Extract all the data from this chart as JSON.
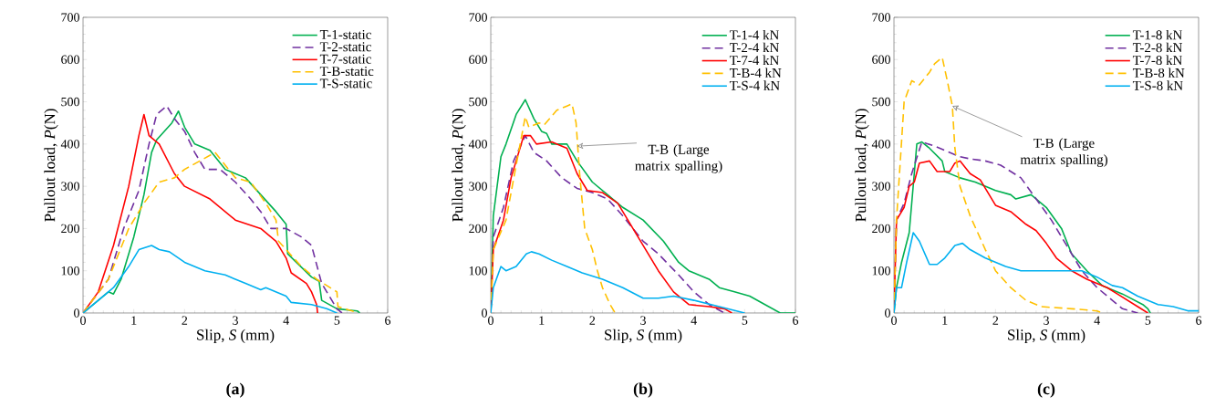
{
  "chart_data": [
    {
      "type": "line",
      "subtitle": "(a)",
      "xlabel": "Slip, *S* (mm)",
      "ylabel": "Pullout load, *P*(N)",
      "xlim": [
        0,
        6
      ],
      "ylim": [
        0,
        700
      ],
      "xticks": [
        0,
        1,
        2,
        3,
        4,
        5,
        6
      ],
      "yticks": [
        0,
        100,
        200,
        300,
        400,
        500,
        600,
        700
      ],
      "legend": "top right",
      "grid": false,
      "marker": "none",
      "series": [
        {
          "name": "T-1-static",
          "color": "#00b050",
          "line_style": "solid",
          "x": [
            0,
            0.5,
            0.6,
            0.75,
            1,
            1.2,
            1.35,
            1.45,
            1.6,
            1.75,
            1.88,
            2,
            2.2,
            2.5,
            2.8,
            3.2,
            3.5,
            3.8,
            4,
            4.03,
            4.2,
            4.5,
            4.65,
            4.7,
            5,
            5.4,
            5.45
          ],
          "values": [
            0,
            50,
            45,
            80,
            180,
            280,
            380,
            410,
            430,
            450,
            478,
            440,
            400,
            385,
            340,
            320,
            280,
            240,
            210,
            140,
            120,
            85,
            75,
            30,
            10,
            5,
            0
          ]
        },
        {
          "name": "T-2-static",
          "color": "#7030a0",
          "line_style": "dashed",
          "x": [
            0,
            0.5,
            0.8,
            1.1,
            1.3,
            1.45,
            1.65,
            1.8,
            2,
            2.2,
            2.4,
            2.7,
            3,
            3.3,
            3.5,
            3.7,
            4,
            4.3,
            4.5,
            4.7,
            5,
            5.1
          ],
          "values": [
            0,
            80,
            200,
            290,
            400,
            470,
            490,
            460,
            430,
            380,
            340,
            340,
            310,
            270,
            240,
            200,
            200,
            180,
            160,
            70,
            10,
            0
          ]
        },
        {
          "name": "T-7-static",
          "color": "#ff0000",
          "line_style": "solid",
          "x": [
            0,
            0.3,
            0.6,
            0.9,
            1.1,
            1.2,
            1.3,
            1.5,
            1.8,
            2,
            2.5,
            3,
            3.5,
            3.8,
            4,
            4.1,
            4.4,
            4.5,
            4.6,
            4.62
          ],
          "values": [
            0,
            50,
            160,
            300,
            420,
            470,
            420,
            400,
            330,
            300,
            270,
            220,
            200,
            170,
            130,
            95,
            70,
            50,
            20,
            0
          ]
        },
        {
          "name": "T-B-static",
          "color": "#ffc000",
          "line_style": "dashed",
          "x": [
            0,
            0.5,
            0.9,
            1.2,
            1.5,
            1.8,
            2,
            2.3,
            2.6,
            2.8,
            3,
            3.3,
            3.6,
            3.8,
            3.85,
            4,
            4.3,
            4.6,
            5,
            5.02,
            5.3,
            5.4
          ],
          "values": [
            0,
            80,
            200,
            260,
            310,
            320,
            340,
            360,
            380,
            350,
            320,
            310,
            260,
            220,
            170,
            150,
            110,
            80,
            50,
            15,
            5,
            0
          ]
        },
        {
          "name": "T-S-static",
          "color": "#00b0f0",
          "line_style": "solid",
          "x": [
            0,
            0.3,
            0.6,
            0.9,
            1.1,
            1.35,
            1.5,
            1.7,
            2,
            2.4,
            2.8,
            3.2,
            3.5,
            3.6,
            4,
            4.1,
            4.5,
            4.8,
            5
          ],
          "values": [
            0,
            30,
            60,
            110,
            150,
            160,
            150,
            145,
            120,
            100,
            90,
            70,
            55,
            60,
            40,
            25,
            20,
            10,
            0
          ]
        }
      ]
    },
    {
      "type": "line",
      "subtitle": "(b)",
      "xlabel": "Slip, *S* (mm)",
      "ylabel": "Pullout load, *P*(N)",
      "xlim": [
        0,
        6
      ],
      "ylim": [
        0,
        700
      ],
      "xticks": [
        0,
        1,
        2,
        3,
        4,
        5,
        6
      ],
      "yticks": [
        0,
        100,
        200,
        300,
        400,
        500,
        600,
        700
      ],
      "legend": "top right",
      "grid": false,
      "marker": "none",
      "annotations": [
        {
          "text": "T-B (Large matrix spalling)",
          "x": 1.7,
          "y": 395
        }
      ],
      "series": [
        {
          "name": "T-1-4 kN",
          "color": "#00b050",
          "line_style": "solid",
          "x": [
            0,
            0.05,
            0.2,
            0.3,
            0.5,
            0.68,
            0.85,
            1,
            1.1,
            1.2,
            1.5,
            1.7,
            2,
            2.3,
            2.6,
            3,
            3.4,
            3.7,
            3.9,
            4.3,
            4.5,
            4.8,
            5.1,
            5.4,
            5.7,
            6
          ],
          "values": [
            0,
            230,
            370,
            400,
            470,
            505,
            460,
            430,
            425,
            400,
            400,
            360,
            310,
            280,
            250,
            220,
            170,
            120,
            100,
            80,
            60,
            50,
            40,
            20,
            0,
            0
          ]
        },
        {
          "name": "T-2-4 kN",
          "color": "#7030a0",
          "line_style": "dashed",
          "x": [
            0,
            0.05,
            0.25,
            0.45,
            0.68,
            0.85,
            1.1,
            1.4,
            1.7,
            2,
            2.3,
            2.6,
            3,
            3.3,
            3.7,
            4,
            4.3,
            4.6
          ],
          "values": [
            0,
            180,
            250,
            360,
            420,
            380,
            360,
            320,
            295,
            285,
            270,
            230,
            170,
            140,
            90,
            50,
            20,
            0
          ]
        },
        {
          "name": "T-7-4 kN",
          "color": "#ff0000",
          "line_style": "solid",
          "x": [
            0,
            0.05,
            0.25,
            0.4,
            0.65,
            0.78,
            0.9,
            1.2,
            1.5,
            1.7,
            1.9,
            2.2,
            2.5,
            2.8,
            3,
            3.3,
            3.6,
            3.9,
            4.3,
            4.6,
            4.75
          ],
          "values": [
            0,
            150,
            220,
            320,
            420,
            420,
            400,
            405,
            390,
            330,
            290,
            285,
            260,
            200,
            160,
            100,
            50,
            20,
            15,
            10,
            0
          ]
        },
        {
          "name": "T-B-4 kN",
          "color": "#ffc000",
          "line_style": "dashed",
          "x": [
            0,
            0.05,
            0.3,
            0.5,
            0.68,
            0.75,
            0.95,
            1.05,
            1.3,
            1.5,
            1.6,
            1.68,
            1.75,
            1.85,
            2,
            2.1,
            2.2,
            2.35,
            2.45
          ],
          "values": [
            0,
            150,
            220,
            350,
            465,
            440,
            450,
            445,
            480,
            490,
            495,
            450,
            330,
            200,
            150,
            100,
            60,
            20,
            0
          ]
        },
        {
          "name": "T-S-4 kN",
          "color": "#00b0f0",
          "line_style": "solid",
          "x": [
            0,
            0.05,
            0.2,
            0.3,
            0.5,
            0.7,
            0.8,
            0.95,
            1.2,
            1.5,
            1.8,
            2.2,
            2.6,
            3,
            3.3,
            3.6,
            4,
            4.5,
            5
          ],
          "values": [
            0,
            60,
            110,
            100,
            110,
            140,
            145,
            140,
            125,
            110,
            95,
            80,
            60,
            35,
            35,
            40,
            30,
            15,
            0
          ]
        }
      ]
    },
    {
      "type": "line",
      "subtitle": "(c)",
      "xlabel": "Slip, *S* (mm)",
      "ylabel": "Pullout load, *P*(N)",
      "xlim": [
        0,
        6
      ],
      "ylim": [
        0,
        700
      ],
      "xticks": [
        0,
        1,
        2,
        3,
        4,
        5,
        6
      ],
      "yticks": [
        0,
        100,
        200,
        300,
        400,
        500,
        600,
        700
      ],
      "legend": "top right",
      "grid": false,
      "marker": "none",
      "annotations": [
        {
          "text": "T-B (Large matrix spalling)",
          "x": 1.15,
          "y": 490
        }
      ],
      "series": [
        {
          "name": "T-1-8 kN",
          "color": "#00b050",
          "line_style": "solid",
          "x": [
            0,
            0.05,
            0.15,
            0.3,
            0.45,
            0.55,
            0.7,
            0.95,
            1,
            1.3,
            1.6,
            2,
            2.3,
            2.4,
            2.7,
            3,
            3.3,
            3.5,
            3.8,
            4.1,
            4.5,
            4.9,
            5,
            5.05
          ],
          "values": [
            0,
            60,
            120,
            190,
            400,
            405,
            390,
            360,
            335,
            320,
            310,
            290,
            280,
            270,
            280,
            250,
            200,
            140,
            100,
            65,
            45,
            20,
            10,
            0
          ]
        },
        {
          "name": "T-2-8 kN",
          "color": "#7030a0",
          "line_style": "dashed",
          "x": [
            0,
            0.05,
            0.2,
            0.35,
            0.55,
            0.8,
            1,
            1.3,
            1.5,
            1.8,
            2.1,
            2.5,
            2.8,
            3.1,
            3.4,
            3.7,
            4,
            4.3,
            4.5,
            4.8
          ],
          "values": [
            0,
            220,
            260,
            330,
            405,
            395,
            385,
            370,
            365,
            360,
            350,
            320,
            270,
            220,
            160,
            100,
            60,
            30,
            10,
            0
          ]
        },
        {
          "name": "T-7-8 kN",
          "color": "#ff0000",
          "line_style": "solid",
          "x": [
            0,
            0.05,
            0.2,
            0.3,
            0.4,
            0.5,
            0.7,
            0.85,
            1.1,
            1.2,
            1.3,
            1.5,
            1.7,
            2,
            2.3,
            2.6,
            2.8,
            3,
            3.2,
            3.5,
            3.8,
            4.2,
            4.4,
            4.8,
            5
          ],
          "values": [
            0,
            220,
            250,
            300,
            310,
            355,
            360,
            335,
            335,
            355,
            360,
            330,
            315,
            255,
            240,
            210,
            195,
            165,
            130,
            100,
            80,
            60,
            45,
            15,
            0
          ]
        },
        {
          "name": "T-B-8 kN",
          "color": "#ffc000",
          "line_style": "dashed",
          "x": [
            0,
            0.05,
            0.2,
            0.35,
            0.5,
            0.7,
            0.8,
            0.95,
            1.05,
            1.15,
            1.2,
            1.3,
            1.5,
            1.8,
            2,
            2.3,
            2.6,
            2.9,
            3.5,
            4,
            4.1
          ],
          "values": [
            0,
            220,
            500,
            550,
            540,
            570,
            590,
            605,
            550,
            490,
            390,
            300,
            230,
            150,
            100,
            60,
            30,
            15,
            10,
            5,
            0
          ]
        },
        {
          "name": "T-S-8 kN",
          "color": "#00b0f0",
          "line_style": "solid",
          "x": [
            0,
            0.05,
            0.15,
            0.25,
            0.38,
            0.5,
            0.7,
            0.85,
            1,
            1.2,
            1.35,
            1.5,
            1.8,
            2.2,
            2.5,
            2.8,
            3.2,
            3.7,
            4,
            4.3,
            4.5,
            4.8,
            5.2,
            5.5,
            5.8,
            6
          ],
          "values": [
            0,
            60,
            60,
            120,
            190,
            170,
            115,
            115,
            130,
            160,
            165,
            150,
            130,
            110,
            100,
            100,
            100,
            100,
            85,
            65,
            60,
            40,
            20,
            15,
            5,
            5
          ]
        }
      ]
    }
  ]
}
